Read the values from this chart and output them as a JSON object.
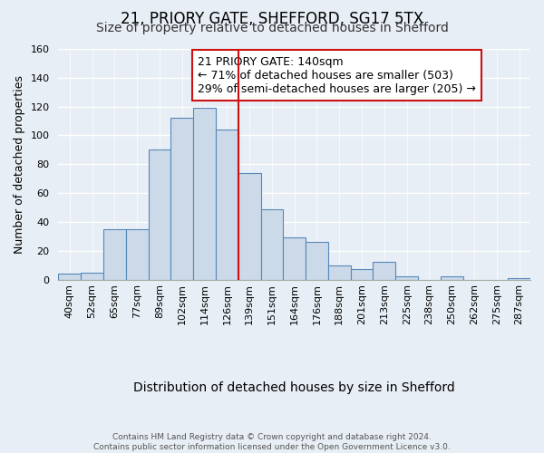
{
  "title": "21, PRIORY GATE, SHEFFORD, SG17 5TX",
  "subtitle": "Size of property relative to detached houses in Shefford",
  "xlabel": "Distribution of detached houses by size in Shefford",
  "ylabel": "Number of detached properties",
  "bin_labels": [
    "40sqm",
    "52sqm",
    "65sqm",
    "77sqm",
    "89sqm",
    "102sqm",
    "114sqm",
    "126sqm",
    "139sqm",
    "151sqm",
    "164sqm",
    "176sqm",
    "188sqm",
    "201sqm",
    "213sqm",
    "225sqm",
    "238sqm",
    "250sqm",
    "262sqm",
    "275sqm",
    "287sqm"
  ],
  "bar_values": [
    4,
    5,
    35,
    35,
    90,
    112,
    119,
    104,
    74,
    49,
    29,
    26,
    10,
    7,
    12,
    2,
    0,
    2,
    0,
    0,
    1
  ],
  "bar_color": "#ccd9e8",
  "bar_edge_color": "#5588bb",
  "vline_color": "#cc1111",
  "vline_x": 8,
  "ylim": [
    0,
    160
  ],
  "yticks": [
    0,
    20,
    40,
    60,
    80,
    100,
    120,
    140,
    160
  ],
  "annotation_title": "21 PRIORY GATE: 140sqm",
  "annotation_line1": "← 71% of detached houses are smaller (503)",
  "annotation_line2": "29% of semi-detached houses are larger (205) →",
  "annotation_box_facecolor": "#ffffff",
  "annotation_box_edgecolor": "#cc1111",
  "footer_line1": "Contains HM Land Registry data © Crown copyright and database right 2024.",
  "footer_line2": "Contains public sector information licensed under the Open Government Licence v3.0.",
  "background_color": "#e8eef5",
  "grid_color": "#ffffff",
  "title_fontsize": 12,
  "subtitle_fontsize": 10,
  "ylabel_fontsize": 9,
  "xlabel_fontsize": 10,
  "tick_fontsize": 8,
  "annotation_fontsize": 9,
  "footer_fontsize": 6.5
}
